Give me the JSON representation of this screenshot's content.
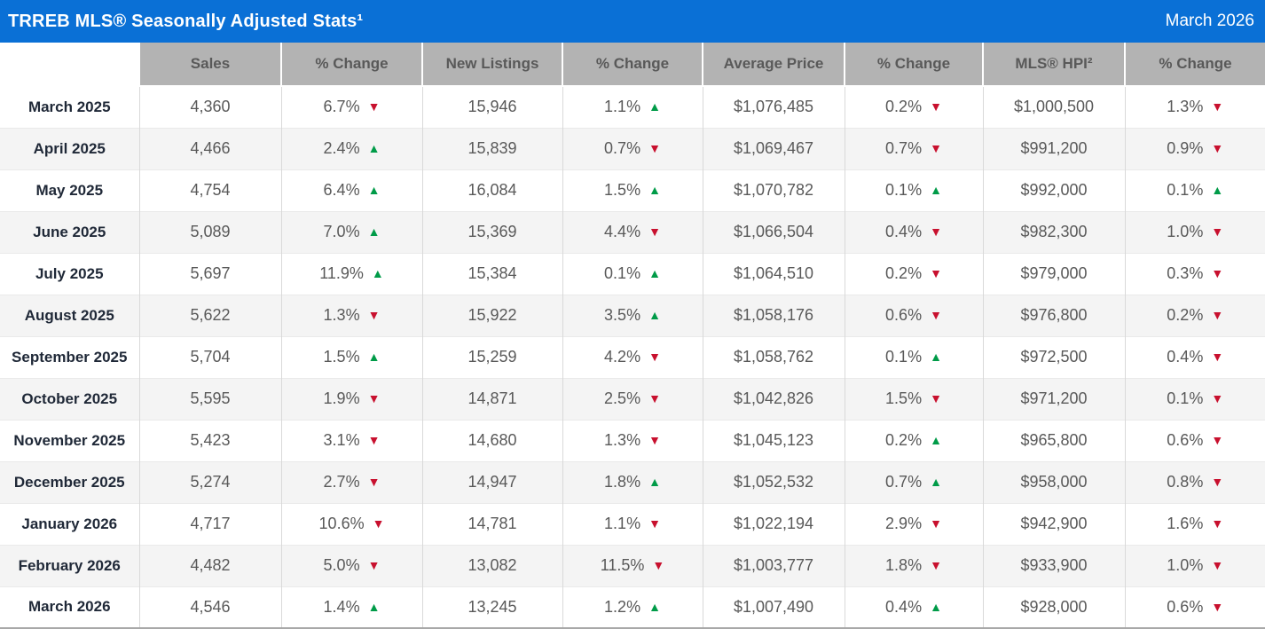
{
  "title_bar": {
    "title": "TRREB MLS® Seasonally Adjusted Stats¹",
    "period": "March 2026"
  },
  "colors": {
    "header_blue": "#0a70d6",
    "column_header_bg": "#b3b3b3",
    "column_header_text": "#595959",
    "row_label_text": "#1f2837",
    "data_text": "#595959",
    "row_stripe": "#f4f4f4",
    "up_green": "#009b48",
    "down_red": "#c8102e"
  },
  "chart_data": {
    "type": "table",
    "title": "TRREB MLS® Seasonally Adjusted Stats¹",
    "subtitle": "March 2026",
    "columns": [
      "",
      "Sales",
      "% Change",
      "New Listings",
      "% Change",
      "Average Price",
      "% Change",
      "MLS® HPI²",
      "% Change"
    ],
    "rows": [
      {
        "month": "March 2025",
        "sales": "4,360",
        "sales_change": "6.7%",
        "sales_dir": "down",
        "new_listings": "15,946",
        "new_listings_change": "1.1%",
        "new_listings_dir": "up",
        "average_price": "$1,076,485",
        "average_price_change": "0.2%",
        "average_price_dir": "down",
        "hpi": "$1,000,500",
        "hpi_change": "1.3%",
        "hpi_dir": "down"
      },
      {
        "month": "April 2025",
        "sales": "4,466",
        "sales_change": "2.4%",
        "sales_dir": "up",
        "new_listings": "15,839",
        "new_listings_change": "0.7%",
        "new_listings_dir": "down",
        "average_price": "$1,069,467",
        "average_price_change": "0.7%",
        "average_price_dir": "down",
        "hpi": "$991,200",
        "hpi_change": "0.9%",
        "hpi_dir": "down"
      },
      {
        "month": "May 2025",
        "sales": "4,754",
        "sales_change": "6.4%",
        "sales_dir": "up",
        "new_listings": "16,084",
        "new_listings_change": "1.5%",
        "new_listings_dir": "up",
        "average_price": "$1,070,782",
        "average_price_change": "0.1%",
        "average_price_dir": "up",
        "hpi": "$992,000",
        "hpi_change": "0.1%",
        "hpi_dir": "up"
      },
      {
        "month": "June 2025",
        "sales": "5,089",
        "sales_change": "7.0%",
        "sales_dir": "up",
        "new_listings": "15,369",
        "new_listings_change": "4.4%",
        "new_listings_dir": "down",
        "average_price": "$1,066,504",
        "average_price_change": "0.4%",
        "average_price_dir": "down",
        "hpi": "$982,300",
        "hpi_change": "1.0%",
        "hpi_dir": "down"
      },
      {
        "month": "July 2025",
        "sales": "5,697",
        "sales_change": "11.9%",
        "sales_dir": "up",
        "new_listings": "15,384",
        "new_listings_change": "0.1%",
        "new_listings_dir": "up",
        "average_price": "$1,064,510",
        "average_price_change": "0.2%",
        "average_price_dir": "down",
        "hpi": "$979,000",
        "hpi_change": "0.3%",
        "hpi_dir": "down"
      },
      {
        "month": "August 2025",
        "sales": "5,622",
        "sales_change": "1.3%",
        "sales_dir": "down",
        "new_listings": "15,922",
        "new_listings_change": "3.5%",
        "new_listings_dir": "up",
        "average_price": "$1,058,176",
        "average_price_change": "0.6%",
        "average_price_dir": "down",
        "hpi": "$976,800",
        "hpi_change": "0.2%",
        "hpi_dir": "down"
      },
      {
        "month": "September 2025",
        "sales": "5,704",
        "sales_change": "1.5%",
        "sales_dir": "up",
        "new_listings": "15,259",
        "new_listings_change": "4.2%",
        "new_listings_dir": "down",
        "average_price": "$1,058,762",
        "average_price_change": "0.1%",
        "average_price_dir": "up",
        "hpi": "$972,500",
        "hpi_change": "0.4%",
        "hpi_dir": "down"
      },
      {
        "month": "October 2025",
        "sales": "5,595",
        "sales_change": "1.9%",
        "sales_dir": "down",
        "new_listings": "14,871",
        "new_listings_change": "2.5%",
        "new_listings_dir": "down",
        "average_price": "$1,042,826",
        "average_price_change": "1.5%",
        "average_price_dir": "down",
        "hpi": "$971,200",
        "hpi_change": "0.1%",
        "hpi_dir": "down"
      },
      {
        "month": "November 2025",
        "sales": "5,423",
        "sales_change": "3.1%",
        "sales_dir": "down",
        "new_listings": "14,680",
        "new_listings_change": "1.3%",
        "new_listings_dir": "down",
        "average_price": "$1,045,123",
        "average_price_change": "0.2%",
        "average_price_dir": "up",
        "hpi": "$965,800",
        "hpi_change": "0.6%",
        "hpi_dir": "down"
      },
      {
        "month": "December 2025",
        "sales": "5,274",
        "sales_change": "2.7%",
        "sales_dir": "down",
        "new_listings": "14,947",
        "new_listings_change": "1.8%",
        "new_listings_dir": "up",
        "average_price": "$1,052,532",
        "average_price_change": "0.7%",
        "average_price_dir": "up",
        "hpi": "$958,000",
        "hpi_change": "0.8%",
        "hpi_dir": "down"
      },
      {
        "month": "January 2026",
        "sales": "4,717",
        "sales_change": "10.6%",
        "sales_dir": "down",
        "new_listings": "14,781",
        "new_listings_change": "1.1%",
        "new_listings_dir": "down",
        "average_price": "$1,022,194",
        "average_price_change": "2.9%",
        "average_price_dir": "down",
        "hpi": "$942,900",
        "hpi_change": "1.6%",
        "hpi_dir": "down"
      },
      {
        "month": "February 2026",
        "sales": "4,482",
        "sales_change": "5.0%",
        "sales_dir": "down",
        "new_listings": "13,082",
        "new_listings_change": "11.5%",
        "new_listings_dir": "down",
        "average_price": "$1,003,777",
        "average_price_change": "1.8%",
        "average_price_dir": "down",
        "hpi": "$933,900",
        "hpi_change": "1.0%",
        "hpi_dir": "down"
      },
      {
        "month": "March 2026",
        "sales": "4,546",
        "sales_change": "1.4%",
        "sales_dir": "up",
        "new_listings": "13,245",
        "new_listings_change": "1.2%",
        "new_listings_dir": "up",
        "average_price": "$1,007,490",
        "average_price_change": "0.4%",
        "average_price_dir": "up",
        "hpi": "$928,000",
        "hpi_change": "0.6%",
        "hpi_dir": "down"
      }
    ]
  }
}
